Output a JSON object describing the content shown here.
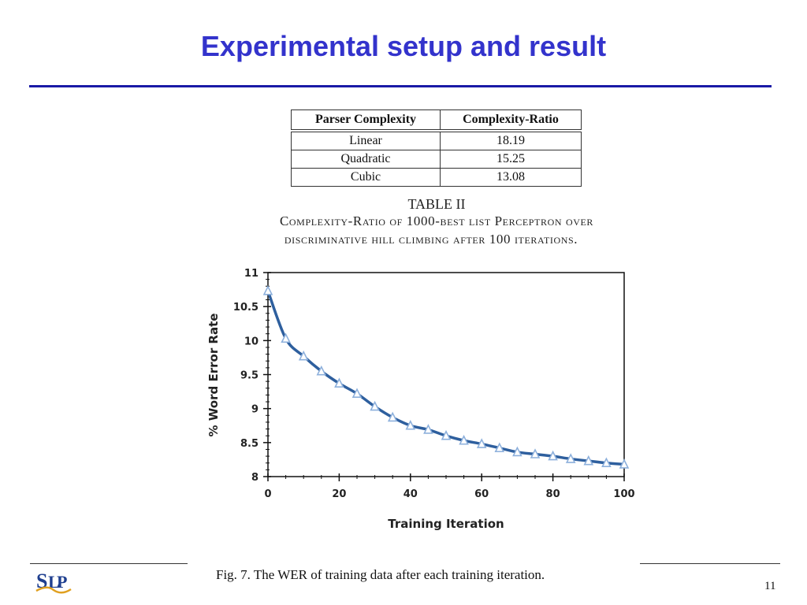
{
  "slide": {
    "title": "Experimental setup and result",
    "page_number": "11",
    "logo_text": "SLP"
  },
  "table": {
    "headers": [
      "Parser  Complexity",
      "Complexity-Ratio"
    ],
    "rows": [
      [
        "Linear",
        "18.19"
      ],
      [
        "Quadratic",
        "15.25"
      ],
      [
        "Cubic",
        "13.08"
      ]
    ],
    "label": "TABLE II",
    "caption_line1": "Complexity-Ratio of 1000-best list Perceptron over",
    "caption_line2": "discriminative hill climbing after 100 iterations."
  },
  "chart_data": {
    "type": "line",
    "title": "",
    "xlabel": "Training Iteration",
    "ylabel": "% Word Error Rate",
    "xlim": [
      0,
      100
    ],
    "ylim": [
      8,
      11
    ],
    "xticks": [
      0,
      20,
      40,
      60,
      80,
      100
    ],
    "yticks": [
      8,
      8.5,
      9,
      9.5,
      10,
      10.5,
      11
    ],
    "grid": false,
    "legend": "none",
    "series": [
      {
        "name": "",
        "color": "#2e5f9e",
        "marker": "triangle",
        "marker_color": "#8db0dc",
        "x": [
          0,
          5,
          10,
          15,
          20,
          25,
          30,
          35,
          40,
          45,
          50,
          55,
          60,
          65,
          70,
          75,
          80,
          85,
          90,
          95,
          100
        ],
        "y": [
          10.73,
          10.03,
          9.77,
          9.55,
          9.37,
          9.22,
          9.03,
          8.87,
          8.75,
          8.69,
          8.6,
          8.53,
          8.48,
          8.42,
          8.36,
          8.33,
          8.3,
          8.26,
          8.23,
          8.2,
          8.18
        ]
      }
    ],
    "caption": "Fig. 7.    The WER of training data after each training iteration."
  }
}
